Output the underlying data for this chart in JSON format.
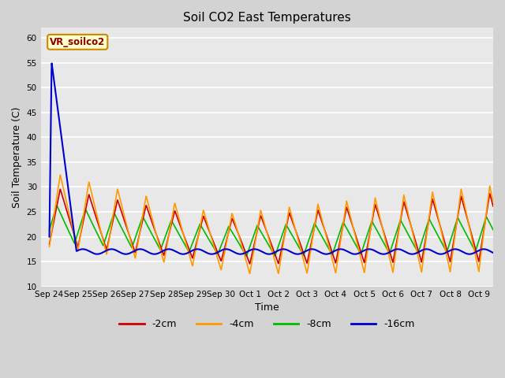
{
  "title": "Soil CO2 East Temperatures",
  "xlabel": "Time",
  "ylabel": "Soil Temperature (C)",
  "ylim": [
    10,
    62
  ],
  "yticks": [
    10,
    15,
    20,
    25,
    30,
    35,
    40,
    45,
    50,
    55,
    60
  ],
  "bg_color": "#e8e8e8",
  "fig_bg_color": "#d3d3d3",
  "legend_label": "VR_soilco2",
  "series_colors": {
    "-2cm": "#cc0000",
    "-4cm": "#ff9900",
    "-8cm": "#00bb00",
    "-16cm": "#0000cc"
  },
  "xtick_labels": [
    "Sep 24",
    "Sep 25",
    "Sep 26",
    "Sep 27",
    "Sep 28",
    "Sep 29",
    "Sep 30",
    "Oct 1",
    "Oct 2",
    "Oct 3",
    "Oct 4",
    "Oct 5",
    "Oct 6",
    "Oct 7",
    "Oct 8",
    "Oct 9"
  ]
}
